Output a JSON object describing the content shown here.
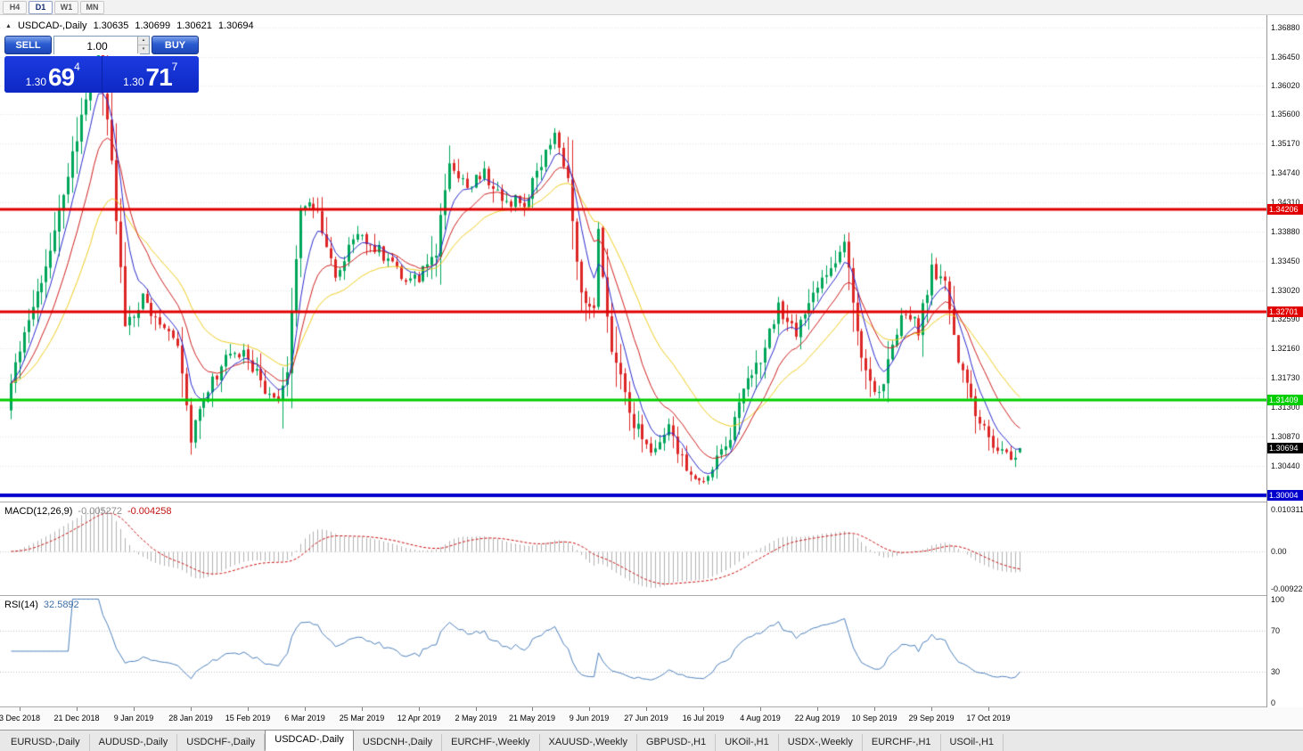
{
  "toolbar": {
    "timeframes": [
      "H4",
      "D1",
      "W1",
      "MN"
    ],
    "active": "D1"
  },
  "header": {
    "symbol": "USDCAD-,Daily",
    "open": "1.30635",
    "high": "1.30699",
    "low": "1.30621",
    "close": "1.30694"
  },
  "icons": {
    "collapse": "▲",
    "spinner_up": "▴",
    "spinner_down": "▾"
  },
  "trade_panel": {
    "sell_label": "SELL",
    "buy_label": "BUY",
    "volume": "1.00",
    "sell_price": {
      "prefix": "1.30",
      "big": "69",
      "sup": "4"
    },
    "buy_price": {
      "prefix": "1.30",
      "big": "71",
      "sup": "7"
    }
  },
  "indicators": {
    "macd": {
      "name": "MACD(12,26,9)",
      "value1": "-0.005272",
      "value2": "-0.004258",
      "scale": [
        {
          "label": "0.010311",
          "value": 0.010311
        },
        {
          "label": "0.00",
          "value": 0
        },
        {
          "label": "-0.0092203",
          "value": -0.0092203
        }
      ]
    },
    "rsi": {
      "name": "RSI(14)",
      "value": "32.5892",
      "scale": [
        {
          "label": "100",
          "value": 100
        },
        {
          "label": "70",
          "value": 70
        },
        {
          "label": "30",
          "value": 30
        },
        {
          "label": "0",
          "value": 0
        }
      ],
      "levels": [
        70,
        30
      ]
    }
  },
  "colors": {
    "up": "#00a65a",
    "down": "#dd2626",
    "ma_fast": "#2a2ad0",
    "ma_mid": "#d02020",
    "ma_slow": "#f0ce20",
    "grid": "#e3e3e3",
    "macd_hist": "#b2b2b2",
    "macd_signal": "#cc1111",
    "rsi_line": "#4f81bd",
    "rsi_level": "#c0c0c0",
    "level_red": "#e00000",
    "level_green": "#00ce00",
    "level_blue": "#0000cc",
    "last_tag_bg": "#000000"
  },
  "chart_data": {
    "type": "candlestick",
    "symbol": "USDCAD",
    "timeframe": "Daily",
    "bars": 231,
    "price_range": {
      "max": 1.3706,
      "min": 1.2991
    },
    "last_candle": {
      "open": 1.30635,
      "high": 1.30699,
      "low": 1.30621,
      "close": 1.30694
    },
    "last_price": {
      "value": 1.30694,
      "label": "1.30694"
    },
    "levels": [
      {
        "price": 1.34206,
        "label": "1.34206",
        "color_key": "level_red",
        "width": 3
      },
      {
        "price": 1.32701,
        "label": "1.32701",
        "color_key": "level_red",
        "width": 3
      },
      {
        "price": 1.31409,
        "label": "1.31409",
        "color_key": "level_green",
        "width": 3
      },
      {
        "price": 1.30004,
        "label": "1.30004",
        "color_key": "level_blue",
        "width": 4
      }
    ],
    "y_ticks": [
      "1.36880",
      "1.36450",
      "1.36020",
      "1.35600",
      "1.35170",
      "1.34740",
      "1.34310",
      "1.33880",
      "1.33450",
      "1.33020",
      "1.32590",
      "1.32160",
      "1.31730",
      "1.31300",
      "1.30870",
      "1.30440"
    ],
    "ma_periods": {
      "fast": 6,
      "mid": 13,
      "slow": 26
    },
    "macd_range": {
      "max": 0.0121,
      "min": -0.0108
    },
    "price_anchors": [
      [
        0,
        1.3165
      ],
      [
        4,
        1.326
      ],
      [
        8,
        1.3335
      ],
      [
        13,
        1.347
      ],
      [
        18,
        1.3615
      ],
      [
        20,
        1.364
      ],
      [
        22,
        1.356
      ],
      [
        26,
        1.3255
      ],
      [
        30,
        1.329
      ],
      [
        34,
        1.3255
      ],
      [
        38,
        1.3215
      ],
      [
        41,
        1.3085
      ],
      [
        44,
        1.314
      ],
      [
        49,
        1.3205
      ],
      [
        53,
        1.3215
      ],
      [
        57,
        1.3165
      ],
      [
        60,
        1.3135
      ],
      [
        63,
        1.318
      ],
      [
        66,
        1.343
      ],
      [
        70,
        1.3415
      ],
      [
        74,
        1.333
      ],
      [
        79,
        1.3385
      ],
      [
        84,
        1.336
      ],
      [
        89,
        1.3325
      ],
      [
        93,
        1.332
      ],
      [
        97,
        1.336
      ],
      [
        100,
        1.349
      ],
      [
        104,
        1.346
      ],
      [
        108,
        1.3475
      ],
      [
        112,
        1.3435
      ],
      [
        117,
        1.343
      ],
      [
        121,
        1.349
      ],
      [
        124,
        1.353
      ],
      [
        127,
        1.347
      ],
      [
        130,
        1.329
      ],
      [
        133,
        1.327
      ],
      [
        134,
        1.339
      ],
      [
        137,
        1.321
      ],
      [
        142,
        1.3105
      ],
      [
        146,
        1.307
      ],
      [
        150,
        1.3095
      ],
      [
        154,
        1.3035
      ],
      [
        157,
        1.302
      ],
      [
        160,
        1.3045
      ],
      [
        163,
        1.3065
      ],
      [
        167,
        1.315
      ],
      [
        172,
        1.3215
      ],
      [
        175,
        1.328
      ],
      [
        179,
        1.3235
      ],
      [
        182,
        1.329
      ],
      [
        185,
        1.3315
      ],
      [
        188,
        1.3345
      ],
      [
        190,
        1.337
      ],
      [
        193,
        1.3235
      ],
      [
        196,
        1.316
      ],
      [
        198,
        1.3145
      ],
      [
        201,
        1.323
      ],
      [
        204,
        1.327
      ],
      [
        207,
        1.3245
      ],
      [
        210,
        1.333
      ],
      [
        213,
        1.331
      ],
      [
        216,
        1.3205
      ],
      [
        219,
        1.3135
      ],
      [
        222,
        1.31
      ],
      [
        225,
        1.3062
      ],
      [
        228,
        1.3052
      ],
      [
        230,
        1.3069
      ]
    ],
    "x_labels": [
      {
        "label": "3 Dec 2018",
        "bar": 2
      },
      {
        "label": "21 Dec 2018",
        "bar": 15
      },
      {
        "label": "9 Jan 2019",
        "bar": 28
      },
      {
        "label": "28 Jan 2019",
        "bar": 41
      },
      {
        "label": "15 Feb 2019",
        "bar": 54
      },
      {
        "label": "6 Mar 2019",
        "bar": 67
      },
      {
        "label": "25 Mar 2019",
        "bar": 80
      },
      {
        "label": "12 Apr 2019",
        "bar": 93
      },
      {
        "label": "2 May 2019",
        "bar": 106
      },
      {
        "label": "21 May 2019",
        "bar": 119
      },
      {
        "label": "9 Jun 2019",
        "bar": 132
      },
      {
        "label": "27 Jun 2019",
        "bar": 145
      },
      {
        "label": "16 Jul 2019",
        "bar": 158
      },
      {
        "label": "4 Aug 2019",
        "bar": 171
      },
      {
        "label": "22 Aug 2019",
        "bar": 184
      },
      {
        "label": "10 Sep 2019",
        "bar": 197
      },
      {
        "label": "29 Sep 2019",
        "bar": 210
      },
      {
        "label": "17 Oct 2019",
        "bar": 223
      }
    ]
  },
  "tabs": {
    "active_index": 3,
    "items": [
      "EURUSD-,Daily",
      "AUDUSD-,Daily",
      "USDCHF-,Daily",
      "USDCAD-,Daily",
      "USDCNH-,Daily",
      "EURCHF-,Weekly",
      "XAUUSD-,Weekly",
      "GBPUSD-,H1",
      "UKOil-,H1",
      "USDX-,Weekly",
      "EURCHF-,H1",
      "USOil-,H1"
    ]
  }
}
